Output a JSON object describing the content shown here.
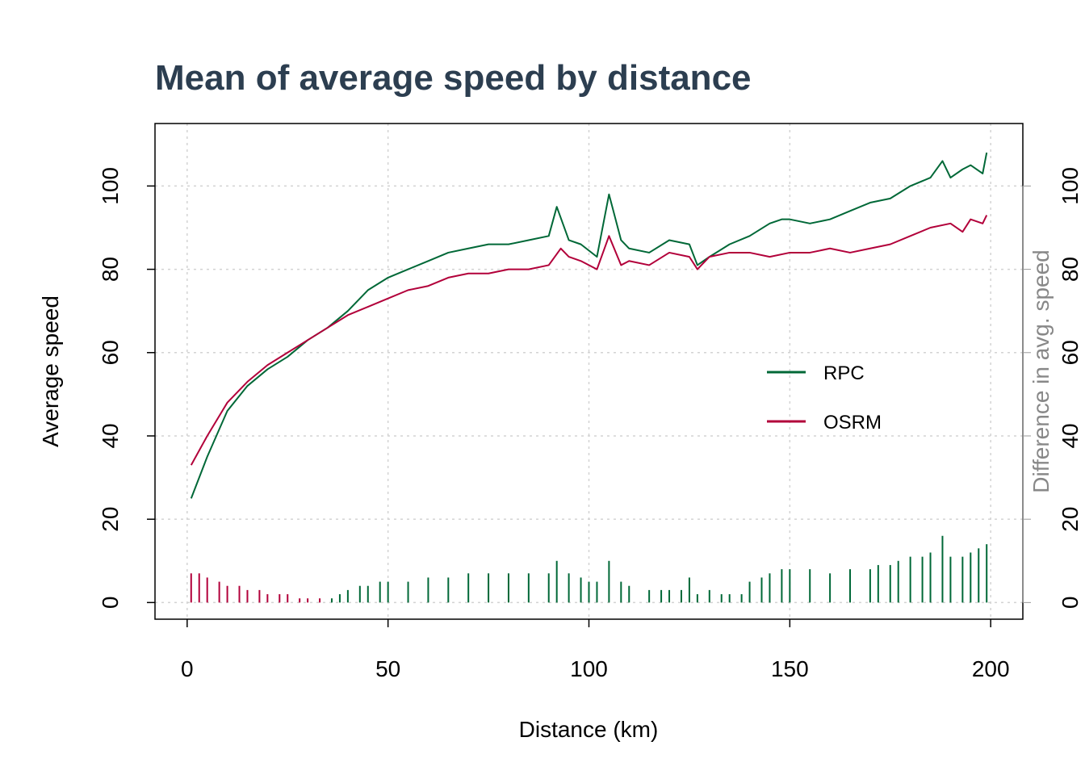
{
  "chart_data": {
    "type": "line",
    "title": "Mean of average speed by distance",
    "xlabel": "Distance (km)",
    "ylabel": "Average speed",
    "y2label": "Difference in avg. speed",
    "xlim": [
      -8,
      208
    ],
    "ylim": [
      -4,
      115
    ],
    "y2lim": [
      -4,
      115
    ],
    "xticks": [
      0,
      50,
      100,
      150,
      200
    ],
    "yticks": [
      0,
      20,
      40,
      60,
      80,
      100
    ],
    "y2ticks": [
      0,
      20,
      40,
      60,
      80,
      100
    ],
    "grid": true,
    "legend_position": "right",
    "colors": {
      "RPC": "#006837",
      "OSRM": "#b2003a",
      "secondary_axis": "#999999",
      "title": "#2c3e50"
    },
    "series": [
      {
        "name": "RPC",
        "color": "#006837",
        "x": [
          1,
          5,
          10,
          15,
          20,
          25,
          30,
          35,
          40,
          45,
          50,
          55,
          60,
          65,
          70,
          75,
          80,
          85,
          90,
          92,
          95,
          98,
          102,
          105,
          108,
          110,
          115,
          120,
          125,
          127,
          130,
          135,
          140,
          145,
          148,
          150,
          155,
          160,
          165,
          170,
          175,
          180,
          185,
          188,
          190,
          193,
          195,
          198,
          199
        ],
        "y": [
          25,
          35,
          46,
          52,
          56,
          59,
          63,
          66,
          70,
          75,
          78,
          80,
          82,
          84,
          85,
          86,
          86,
          87,
          88,
          95,
          87,
          86,
          83,
          98,
          87,
          85,
          84,
          87,
          86,
          81,
          83,
          86,
          88,
          91,
          92,
          92,
          91,
          92,
          94,
          96,
          97,
          100,
          102,
          106,
          102,
          104,
          105,
          103,
          108
        ]
      },
      {
        "name": "OSRM",
        "color": "#b2003a",
        "x": [
          1,
          5,
          10,
          15,
          20,
          25,
          30,
          35,
          40,
          45,
          50,
          55,
          60,
          65,
          70,
          75,
          80,
          85,
          90,
          93,
          95,
          98,
          102,
          105,
          108,
          110,
          115,
          120,
          125,
          127,
          130,
          135,
          140,
          145,
          150,
          155,
          160,
          165,
          170,
          175,
          180,
          185,
          190,
          193,
          195,
          198,
          199
        ],
        "y": [
          33,
          40,
          48,
          53,
          57,
          60,
          63,
          66,
          69,
          71,
          73,
          75,
          76,
          78,
          79,
          79,
          80,
          80,
          81,
          85,
          83,
          82,
          80,
          88,
          81,
          82,
          81,
          84,
          83,
          80,
          83,
          84,
          84,
          83,
          84,
          84,
          85,
          84,
          85,
          86,
          88,
          90,
          91,
          89,
          92,
          91,
          93
        ]
      }
    ],
    "difference_bars": {
      "x": [
        1,
        3,
        5,
        8,
        10,
        13,
        15,
        18,
        20,
        23,
        25,
        28,
        30,
        33,
        35,
        36,
        38,
        40,
        43,
        45,
        48,
        50,
        55,
        60,
        65,
        70,
        75,
        80,
        85,
        90,
        92,
        95,
        98,
        100,
        102,
        105,
        108,
        110,
        115,
        118,
        120,
        123,
        125,
        127,
        130,
        133,
        135,
        138,
        140,
        143,
        145,
        148,
        150,
        155,
        160,
        165,
        170,
        172,
        175,
        177,
        180,
        183,
        185,
        188,
        190,
        193,
        195,
        197,
        199
      ],
      "y": [
        7,
        7,
        6,
        5,
        4,
        4,
        3,
        3,
        2,
        2,
        2,
        1,
        1,
        1,
        0,
        1,
        2,
        3,
        4,
        4,
        5,
        5,
        5,
        6,
        6,
        7,
        7,
        7,
        7,
        7,
        10,
        7,
        6,
        5,
        5,
        10,
        5,
        4,
        3,
        3,
        3,
        3,
        6,
        2,
        3,
        2,
        2,
        2,
        5,
        6,
        7,
        8,
        8,
        8,
        7,
        8,
        8,
        9,
        9,
        10,
        11,
        11,
        12,
        16,
        11,
        11,
        12,
        13,
        14
      ],
      "color_positive": "#006837",
      "color_negative": "#b2003a"
    },
    "legend": [
      {
        "label": "RPC",
        "color": "#006837"
      },
      {
        "label": "OSRM",
        "color": "#b2003a"
      }
    ]
  }
}
